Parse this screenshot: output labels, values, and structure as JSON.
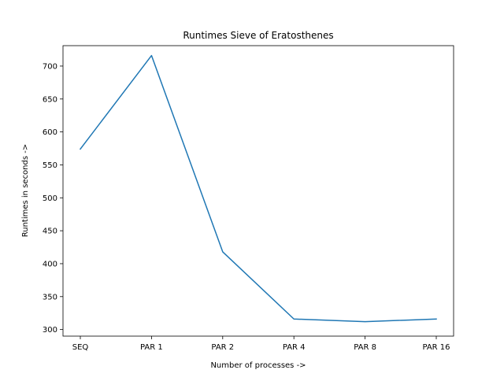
{
  "chart_data": {
    "type": "line",
    "title": "Runtimes Sieve of Eratosthenes",
    "xlabel": "Number of processes ->",
    "ylabel": "Runtimes in seconds ->",
    "categories": [
      "SEQ",
      "PAR 1",
      "PAR 2",
      "PAR 4",
      "PAR 8",
      "PAR 16"
    ],
    "series": [
      {
        "values": [
          574,
          716,
          418,
          316,
          312,
          316
        ]
      }
    ],
    "ylim": [
      290,
      731
    ],
    "yticks": [
      300,
      350,
      400,
      450,
      500,
      550,
      600,
      650,
      700
    ],
    "grid": false,
    "line_color": "#1f77b4"
  }
}
